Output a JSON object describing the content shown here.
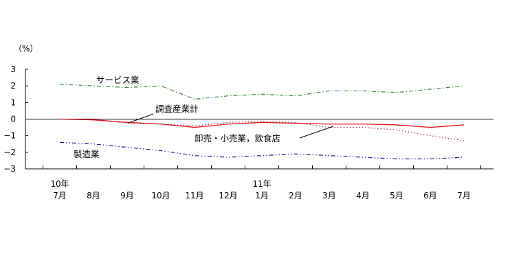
{
  "chart_data": {
    "type": "line",
    "ylabel": "（%）",
    "ylim": [
      -3,
      3
    ],
    "yticks": [
      3,
      2,
      1,
      0,
      -1,
      -2,
      -3
    ],
    "ytick_labels": [
      "3",
      "2",
      "1",
      "0",
      "−1",
      "−2",
      "−3"
    ],
    "categories": [
      "7月",
      "8月",
      "9月",
      "10月",
      "11月",
      "12月",
      "1月",
      "2月",
      "3月",
      "4月",
      "5月",
      "6月",
      "7月"
    ],
    "year_labels": [
      {
        "label": "10年",
        "index": 0
      },
      {
        "label": "11年",
        "index": 6
      }
    ],
    "series": [
      {
        "name": "サービス業",
        "color": "#3a8a3a",
        "dash": "dashdot",
        "values": [
          2.1,
          2.0,
          1.9,
          2.0,
          1.2,
          1.4,
          1.5,
          1.4,
          1.7,
          1.7,
          1.6,
          1.8,
          2.0
        ]
      },
      {
        "name": "調査産業計",
        "color": "#e01818",
        "dash": "solid",
        "values": [
          0.0,
          -0.05,
          -0.2,
          -0.3,
          -0.5,
          -0.3,
          -0.2,
          -0.25,
          -0.3,
          -0.3,
          -0.35,
          -0.5,
          -0.35
        ]
      },
      {
        "name": "卸売・小売業，飲食店",
        "color": "#a0205a",
        "dash": "dotted",
        "values": [
          0.0,
          0.0,
          -0.25,
          -0.3,
          -0.4,
          -0.2,
          -0.15,
          -0.2,
          -0.5,
          -0.5,
          -0.65,
          -1.0,
          -1.3
        ]
      },
      {
        "name": "製造業",
        "color": "#1a1aa0",
        "dash": "dashdotdot",
        "values": [
          -1.4,
          -1.5,
          -1.7,
          -1.9,
          -2.2,
          -2.3,
          -2.2,
          -2.1,
          -2.2,
          -2.3,
          -2.4,
          -2.4,
          -2.3
        ]
      }
    ],
    "annotations": [
      {
        "text": "サービス業",
        "series": 0
      },
      {
        "text": "調査産業計",
        "series": 1
      },
      {
        "text": "卸売・小売業，飲食店",
        "series": 2
      },
      {
        "text": "製造業",
        "series": 3
      }
    ],
    "grid": false,
    "legend": "none"
  }
}
